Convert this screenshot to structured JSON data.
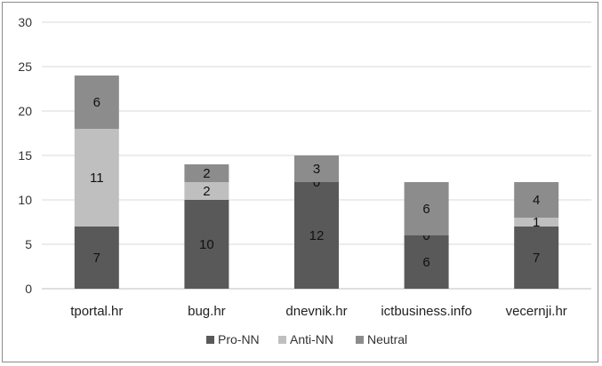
{
  "chart_data": {
    "type": "bar",
    "stacked": true,
    "categories": [
      "tportal.hr",
      "bug.hr",
      "dnevnik.hr",
      "ictbusiness.info",
      "vecernji.hr"
    ],
    "series": [
      {
        "name": "Pro-NN",
        "color": "#595959",
        "values": [
          7,
          10,
          12,
          6,
          7
        ]
      },
      {
        "name": "Anti-NN",
        "color": "#bfbfbf",
        "values": [
          11,
          2,
          0,
          0,
          1
        ]
      },
      {
        "name": "Neutral",
        "color": "#8c8c8c",
        "values": [
          6,
          2,
          3,
          6,
          4
        ]
      }
    ],
    "ylim": [
      0,
      30
    ],
    "yticks": [
      "0",
      "5",
      "10",
      "15",
      "20",
      "25",
      "30"
    ],
    "grid": true,
    "legend_position": "bottom"
  }
}
